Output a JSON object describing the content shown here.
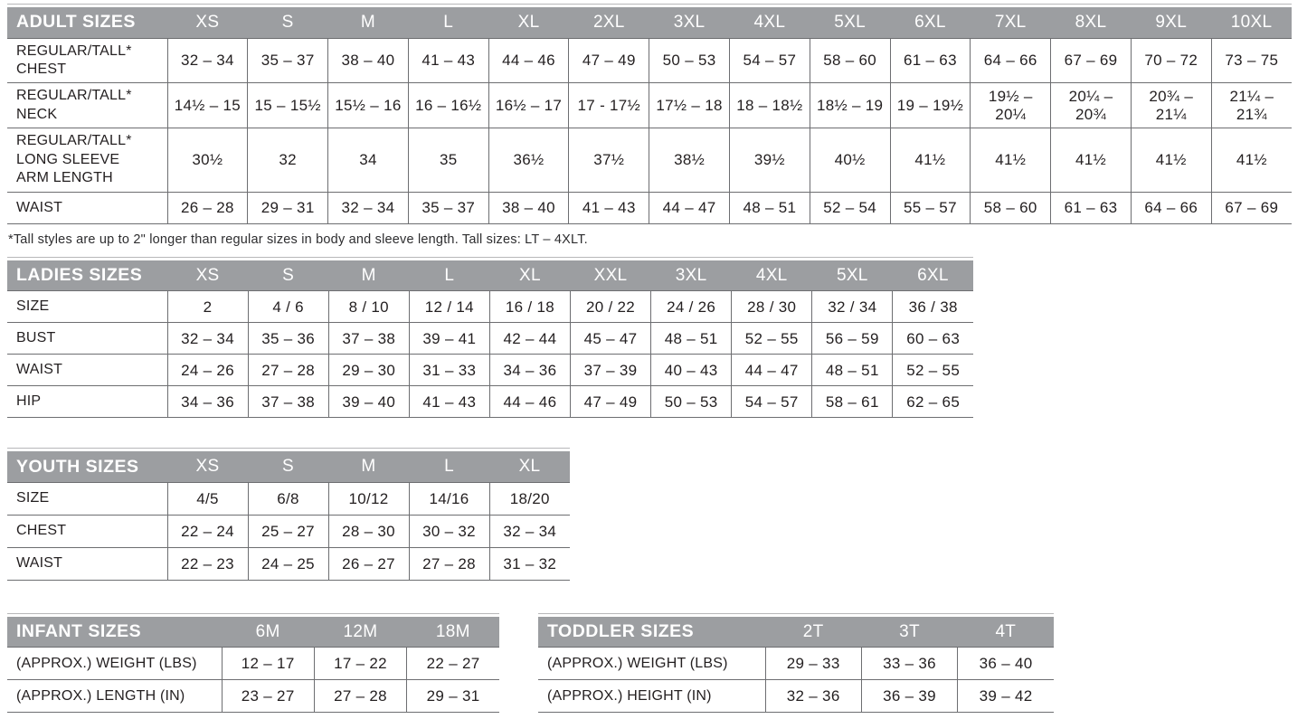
{
  "footnote": "*Tall styles are up to 2\" longer than regular sizes in body and sleeve length. Tall sizes: LT – 4XLT.",
  "colors": {
    "header_bg": "#9c9ea1",
    "header_text": "#ffffff",
    "border": "#6d6e71",
    "body_text": "#231f20"
  },
  "tables": [
    {
      "id": "adult",
      "title": "ADULT SIZES",
      "columns": [
        "XS",
        "S",
        "M",
        "L",
        "XL",
        "2XL",
        "3XL",
        "4XL",
        "5XL",
        "6XL",
        "7XL",
        "8XL",
        "9XL",
        "10XL"
      ],
      "rows": [
        {
          "label": "REGULAR/TALL*\nCHEST",
          "values": [
            "32 – 34",
            "35 – 37",
            "38 – 40",
            "41 – 43",
            "44 – 46",
            "47 – 49",
            "50 – 53",
            "54 – 57",
            "58 – 60",
            "61 – 63",
            "64 – 66",
            "67 – 69",
            "70 – 72",
            "73 – 75"
          ]
        },
        {
          "label": "REGULAR/TALL*\nNECK",
          "values": [
            "14½ – 15",
            "15 – 15½",
            "15½ – 16",
            "16 – 16½",
            "16½ – 17",
            "17 - 17½",
            "17½ – 18",
            "18 – 18½",
            "18½ – 19",
            "19 – 19½",
            "19½ –\n20¼",
            "20¼ –\n20¾",
            "20¾ –\n21¼",
            "21¼ –\n21¾"
          ]
        },
        {
          "label": "REGULAR/TALL*\nLONG SLEEVE\nARM LENGTH",
          "values": [
            "30½",
            "32",
            "34",
            "35",
            "36½",
            "37½",
            "38½",
            "39½",
            "40½",
            "41½",
            "41½",
            "41½",
            "41½",
            "41½"
          ]
        },
        {
          "label": "WAIST",
          "values": [
            "26 – 28",
            "29 – 31",
            "32 – 34",
            "35 – 37",
            "38 – 40",
            "41 – 43",
            "44 – 47",
            "48 – 51",
            "52 – 54",
            "55 – 57",
            "58 – 60",
            "61 – 63",
            "64 – 66",
            "67 – 69"
          ]
        }
      ]
    },
    {
      "id": "ladies",
      "title": "LADIES SIZES",
      "columns": [
        "XS",
        "S",
        "M",
        "L",
        "XL",
        "XXL",
        "3XL",
        "4XL",
        "5XL",
        "6XL"
      ],
      "rows": [
        {
          "label": "SIZE",
          "values": [
            "2",
            "4 / 6",
            "8 / 10",
            "12 / 14",
            "16 / 18",
            "20 / 22",
            "24 / 26",
            "28 / 30",
            "32 / 34",
            "36 / 38"
          ]
        },
        {
          "label": "BUST",
          "values": [
            "32 – 34",
            "35 – 36",
            "37 – 38",
            "39 – 41",
            "42 – 44",
            "45 – 47",
            "48 – 51",
            "52 – 55",
            "56 – 59",
            "60 – 63"
          ]
        },
        {
          "label": "WAIST",
          "values": [
            "24 – 26",
            "27 – 28",
            "29 – 30",
            "31 – 33",
            "34 – 36",
            "37 – 39",
            "40 – 43",
            "44 – 47",
            "48 – 51",
            "52 – 55"
          ]
        },
        {
          "label": "HIP",
          "values": [
            "34 – 36",
            "37 – 38",
            "39 – 40",
            "41 – 43",
            "44 – 46",
            "47 – 49",
            "50 – 53",
            "54 – 57",
            "58 – 61",
            "62 – 65"
          ]
        }
      ]
    },
    {
      "id": "youth",
      "title": "YOUTH SIZES",
      "columns": [
        "XS",
        "S",
        "M",
        "L",
        "XL"
      ],
      "rows": [
        {
          "label": "SIZE",
          "values": [
            "4/5",
            "6/8",
            "10/12",
            "14/16",
            "18/20"
          ]
        },
        {
          "label": "CHEST",
          "values": [
            "22 – 24",
            "25 – 27",
            "28 – 30",
            "30 – 32",
            "32 – 34"
          ]
        },
        {
          "label": "WAIST",
          "values": [
            "22 – 23",
            "24 – 25",
            "26 – 27",
            "27 – 28",
            "31 – 32"
          ]
        }
      ]
    },
    {
      "id": "infant",
      "title": "INFANT SIZES",
      "columns": [
        "6M",
        "12M",
        "18M"
      ],
      "rows": [
        {
          "label": "(APPROX.) WEIGHT (LBS)",
          "values": [
            "12 – 17",
            "17 – 22",
            "22 – 27"
          ]
        },
        {
          "label": "(APPROX.) LENGTH (IN)",
          "values": [
            "23 – 27",
            "27 – 28",
            "29 – 31"
          ]
        }
      ]
    },
    {
      "id": "toddler",
      "title": "TODDLER SIZES",
      "columns": [
        "2T",
        "3T",
        "4T"
      ],
      "rows": [
        {
          "label": "(APPROX.) WEIGHT (LBS)",
          "values": [
            "29 – 33",
            "33 – 36",
            "36 – 40"
          ]
        },
        {
          "label": "(APPROX.) HEIGHT (IN)",
          "values": [
            "32 – 36",
            "36 – 39",
            "39 – 42"
          ]
        }
      ]
    }
  ]
}
